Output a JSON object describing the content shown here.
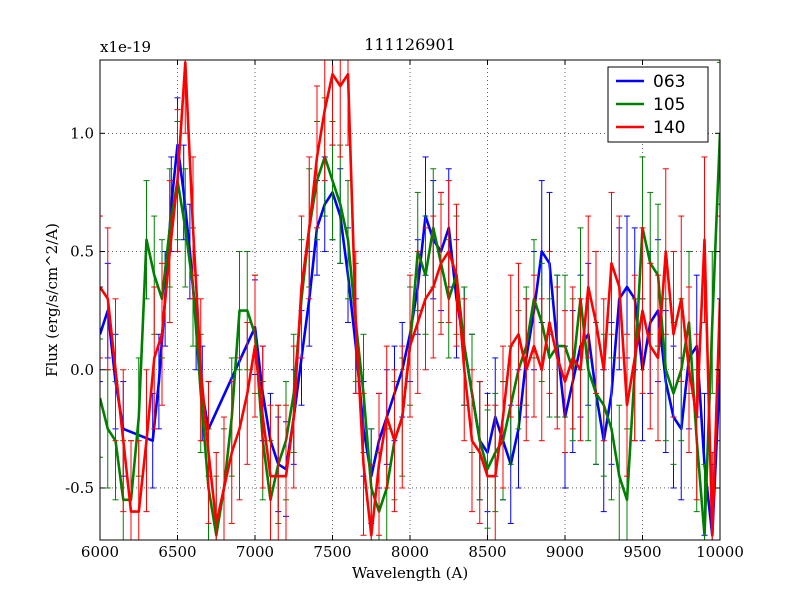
{
  "chart_data": {
    "type": "line",
    "title": "111126901",
    "xlabel": "Wavelength (A)",
    "ylabel": "Flux (erg/s/cm^2/A)",
    "y_scale_label": "x1e-19",
    "xlim": [
      6000,
      10000
    ],
    "ylim": [
      -0.72,
      1.31
    ],
    "x_ticks": [
      6000,
      6500,
      7000,
      7500,
      8000,
      8500,
      9000,
      9500,
      10000
    ],
    "x_tick_labels": [
      "6000",
      "6500",
      "7000",
      "7500",
      "8000",
      "8500",
      "9000",
      "9500",
      "10000"
    ],
    "y_ticks": [
      -0.5,
      0.0,
      0.5,
      1.0
    ],
    "y_tick_labels": [
      "-0.5",
      "0.0",
      "0.5",
      "1.0"
    ],
    "grid": true,
    "legend_position": "top-right",
    "series": [
      {
        "name": "063",
        "color": "#0000ff",
        "x": [
          6000,
          6050,
          6100,
          6150,
          6340,
          6380,
          6420,
          6460,
          6500,
          6540,
          6580,
          6620,
          6660,
          6700,
          7000,
          7050,
          7100,
          7150,
          7200,
          7250,
          7300,
          7350,
          7400,
          7450,
          7500,
          7550,
          7600,
          7650,
          7700,
          7750,
          7800,
          7850,
          7900,
          7950,
          8000,
          8050,
          8100,
          8150,
          8200,
          8250,
          8300,
          8350,
          8400,
          8450,
          8500,
          8550,
          8600,
          8650,
          8700,
          8750,
          8800,
          8850,
          8900,
          8950,
          9000,
          9050,
          9100,
          9150,
          9200,
          9250,
          9300,
          9350,
          9400,
          9450,
          9500,
          9550,
          9600,
          9650,
          9700,
          9750,
          9800,
          9850,
          9900,
          9950,
          10000
        ],
        "y": [
          0.15,
          0.25,
          -0.05,
          -0.25,
          -0.3,
          -0.05,
          0.3,
          0.7,
          0.95,
          0.75,
          0.5,
          0.2,
          -0.1,
          -0.25,
          0.18,
          -0.1,
          -0.3,
          -0.4,
          -0.42,
          -0.2,
          0.05,
          0.3,
          0.6,
          0.7,
          0.75,
          0.65,
          0.4,
          0.1,
          -0.25,
          -0.45,
          -0.3,
          -0.2,
          -0.1,
          0.0,
          0.15,
          0.35,
          0.65,
          0.55,
          0.5,
          0.6,
          0.3,
          0.1,
          -0.1,
          -0.3,
          -0.35,
          -0.2,
          -0.3,
          -0.4,
          -0.25,
          0.05,
          0.25,
          0.5,
          0.45,
          0.1,
          -0.2,
          -0.05,
          0.1,
          0.15,
          -0.1,
          -0.3,
          -0.1,
          0.3,
          0.35,
          0.3,
          0.0,
          0.2,
          0.25,
          -0.05,
          -0.2,
          -0.25,
          0.05,
          0.1,
          -0.4,
          -0.7,
          0.0
        ],
        "errors": [
          0.2,
          0.2,
          0.2,
          0.2,
          0.2,
          0.2,
          0.2,
          0.2,
          0.2,
          0.2,
          0.2,
          0.2,
          0.2,
          0.2,
          0.2,
          0.2,
          0.2,
          0.2,
          0.2,
          0.2,
          0.2,
          0.2,
          0.2,
          0.2,
          0.2,
          0.2,
          0.2,
          0.2,
          0.2,
          0.2,
          0.2,
          0.2,
          0.2,
          0.2,
          0.2,
          0.2,
          0.25,
          0.25,
          0.25,
          0.25,
          0.25,
          0.25,
          0.25,
          0.25,
          0.25,
          0.25,
          0.25,
          0.25,
          0.25,
          0.25,
          0.25,
          0.3,
          0.3,
          0.3,
          0.3,
          0.3,
          0.3,
          0.3,
          0.3,
          0.3,
          0.3,
          0.3,
          0.3,
          0.3,
          0.3,
          0.3,
          0.3,
          0.3,
          0.3,
          0.3,
          0.3,
          0.3,
          0.3,
          0.3,
          0.3
        ]
      },
      {
        "name": "105",
        "color": "#008000",
        "x": [
          6000,
          6050,
          6100,
          6150,
          6200,
          6250,
          6300,
          6350,
          6400,
          6450,
          6500,
          6550,
          6600,
          6650,
          6700,
          6750,
          6800,
          6850,
          6900,
          6950,
          7000,
          7050,
          7100,
          7150,
          7200,
          7250,
          7300,
          7350,
          7400,
          7450,
          7500,
          7550,
          7600,
          7650,
          7700,
          7750,
          7800,
          7850,
          7900,
          7950,
          8000,
          8050,
          8100,
          8150,
          8200,
          8250,
          8300,
          8350,
          8400,
          8450,
          8500,
          8550,
          8600,
          8650,
          8700,
          8750,
          8800,
          8850,
          8900,
          8950,
          9000,
          9050,
          9100,
          9150,
          9200,
          9250,
          9300,
          9350,
          9400,
          9450,
          9500,
          9550,
          9600,
          9650,
          9700,
          9750,
          9800,
          9850,
          9900,
          9950,
          10000
        ],
        "y": [
          -0.12,
          -0.25,
          -0.3,
          -0.55,
          -0.55,
          -0.2,
          0.55,
          0.4,
          0.3,
          0.6,
          0.8,
          0.6,
          0.35,
          -0.1,
          -0.5,
          -0.7,
          -0.5,
          -0.2,
          0.25,
          0.25,
          0.15,
          -0.3,
          -0.55,
          -0.4,
          -0.3,
          -0.1,
          0.3,
          0.6,
          0.8,
          0.9,
          0.8,
          0.7,
          0.55,
          0.2,
          -0.1,
          -0.5,
          -0.6,
          -0.5,
          -0.3,
          -0.2,
          0.1,
          0.5,
          0.4,
          0.6,
          0.45,
          0.3,
          0.4,
          0.1,
          -0.1,
          -0.3,
          -0.42,
          -0.35,
          -0.3,
          -0.15,
          0.0,
          0.1,
          0.3,
          0.2,
          0.05,
          0.1,
          0.1,
          0.0,
          0.3,
          0.0,
          -0.1,
          -0.15,
          -0.25,
          -0.45,
          -0.55,
          0.0,
          0.6,
          0.45,
          0.4,
          0.0,
          -0.1,
          0.0,
          0.2,
          -0.3,
          -0.7,
          0.2,
          1.0
        ],
        "errors": [
          0.25,
          0.25,
          0.25,
          0.25,
          0.25,
          0.25,
          0.25,
          0.25,
          0.25,
          0.25,
          0.25,
          0.25,
          0.25,
          0.25,
          0.25,
          0.25,
          0.25,
          0.25,
          0.25,
          0.25,
          0.25,
          0.25,
          0.25,
          0.25,
          0.25,
          0.25,
          0.25,
          0.25,
          0.25,
          0.25,
          0.25,
          0.25,
          0.25,
          0.25,
          0.25,
          0.25,
          0.25,
          0.25,
          0.25,
          0.25,
          0.25,
          0.25,
          0.25,
          0.25,
          0.25,
          0.25,
          0.25,
          0.25,
          0.25,
          0.25,
          0.25,
          0.25,
          0.25,
          0.25,
          0.25,
          0.25,
          0.25,
          0.25,
          0.25,
          0.3,
          0.3,
          0.3,
          0.3,
          0.3,
          0.3,
          0.3,
          0.3,
          0.3,
          0.3,
          0.3,
          0.3,
          0.3,
          0.3,
          0.3,
          0.3,
          0.3,
          0.3,
          0.3,
          0.3,
          0.3,
          0.3
        ]
      },
      {
        "name": "140",
        "color": "#ff0000",
        "x": [
          6000,
          6050,
          6100,
          6150,
          6200,
          6250,
          6300,
          6350,
          6400,
          6450,
          6500,
          6550,
          6600,
          6650,
          6700,
          6750,
          6800,
          6850,
          6900,
          6950,
          7000,
          7050,
          7100,
          7150,
          7200,
          7250,
          7300,
          7350,
          7400,
          7450,
          7500,
          7550,
          7600,
          7650,
          7700,
          7750,
          7800,
          7850,
          7900,
          7950,
          8000,
          8050,
          8100,
          8150,
          8200,
          8250,
          8300,
          8350,
          8400,
          8450,
          8500,
          8550,
          8600,
          8650,
          8700,
          8750,
          8800,
          8850,
          8900,
          8950,
          9000,
          9050,
          9100,
          9150,
          9200,
          9250,
          9300,
          9350,
          9400,
          9450,
          9500,
          9550,
          9600,
          9650,
          9700,
          9750,
          9800,
          9850,
          9900,
          9950,
          10000
        ],
        "y": [
          0.35,
          0.3,
          0.0,
          -0.3,
          -0.6,
          -0.6,
          -0.3,
          0.05,
          0.15,
          0.5,
          0.8,
          1.3,
          0.6,
          0.0,
          -0.35,
          -0.65,
          -0.5,
          -0.35,
          -0.25,
          -0.1,
          0.1,
          -0.2,
          -0.45,
          -0.45,
          -0.45,
          -0.2,
          0.35,
          0.6,
          0.9,
          1.1,
          1.25,
          1.2,
          1.25,
          0.2,
          -0.4,
          -0.7,
          -0.4,
          -0.2,
          -0.3,
          -0.2,
          0.1,
          0.2,
          0.3,
          0.35,
          0.45,
          0.5,
          0.4,
          0.0,
          -0.3,
          -0.35,
          -0.45,
          -0.45,
          -0.2,
          0.1,
          0.15,
          0.0,
          0.1,
          0.0,
          0.2,
          0.05,
          -0.05,
          0.05,
          0.0,
          0.35,
          0.2,
          0.0,
          0.45,
          0.35,
          -0.15,
          0.05,
          0.25,
          0.1,
          0.05,
          0.5,
          0.15,
          0.3,
          0.0,
          -0.2,
          0.55,
          -0.7,
          0.3
        ],
        "errors": [
          0.3,
          0.3,
          0.3,
          0.3,
          0.3,
          0.3,
          0.3,
          0.3,
          0.3,
          0.3,
          0.3,
          0.3,
          0.3,
          0.3,
          0.3,
          0.3,
          0.3,
          0.3,
          0.3,
          0.3,
          0.3,
          0.3,
          0.3,
          0.3,
          0.3,
          0.3,
          0.3,
          0.3,
          0.3,
          0.3,
          0.3,
          0.3,
          0.3,
          0.3,
          0.3,
          0.3,
          0.3,
          0.3,
          0.3,
          0.3,
          0.3,
          0.3,
          0.3,
          0.3,
          0.3,
          0.3,
          0.3,
          0.3,
          0.3,
          0.3,
          0.3,
          0.3,
          0.3,
          0.3,
          0.3,
          0.3,
          0.3,
          0.3,
          0.3,
          0.3,
          0.3,
          0.3,
          0.3,
          0.3,
          0.3,
          0.3,
          0.3,
          0.3,
          0.3,
          0.35,
          0.35,
          0.35,
          0.35,
          0.35,
          0.35,
          0.35,
          0.35,
          0.35,
          0.35,
          0.35,
          0.35
        ]
      }
    ]
  }
}
